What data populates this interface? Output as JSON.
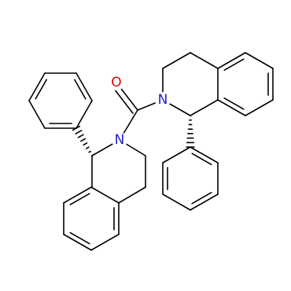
{
  "atoms": {
    "oxygen": "O",
    "nitrogen_right": "N",
    "nitrogen_left": "N"
  }
}
